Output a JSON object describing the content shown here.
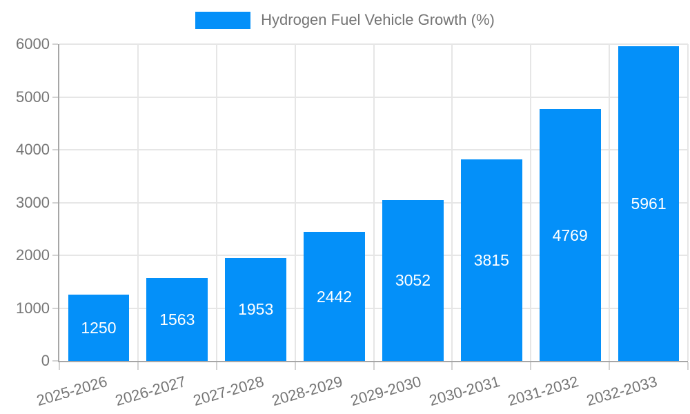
{
  "chart_data": {
    "type": "bar",
    "title": "",
    "legend": {
      "label": "Hydrogen Fuel Vehicle Growth (%)",
      "position": "top-center"
    },
    "categories": [
      "2025-2026",
      "2026-2027",
      "2027-2028",
      "2028-2029",
      "2029-2030",
      "2030-2031",
      "2031-2032",
      "2032-2033"
    ],
    "values": [
      1250,
      1563,
      1953,
      2442,
      3052,
      3815,
      4769,
      5961
    ],
    "xlabel": "",
    "ylabel": "",
    "ylim": [
      0,
      6000
    ],
    "yticks": [
      0,
      1000,
      2000,
      3000,
      4000,
      5000,
      6000
    ],
    "grid": true,
    "bar_value_labels": "centered-inside-white",
    "colors": {
      "bar": "#0490f9",
      "bar_label": "#ffffff",
      "axis_text": "#757575",
      "axis_line": "#a6a6a6",
      "gridline": "#e6e6e6",
      "tick": "#d2d2d2",
      "background": "#ffffff"
    }
  }
}
